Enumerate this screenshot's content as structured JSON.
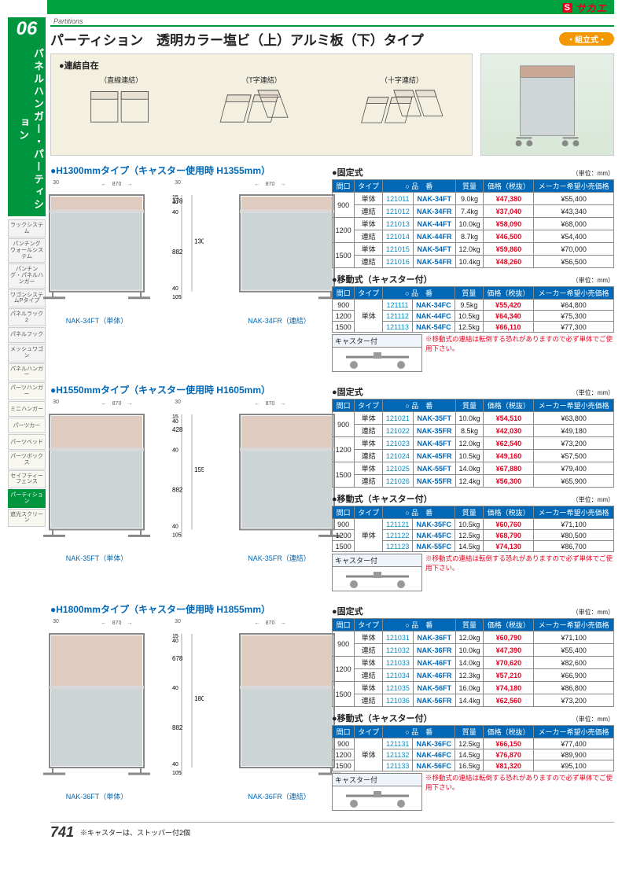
{
  "brand": {
    "s": "S",
    "name": "サカエ"
  },
  "section_number": "06",
  "section_vertical": "パネルハンガー・パーティション",
  "subhead": "Partitions",
  "page_title": "パーティション　透明カラー塩ビ（上）アルミ板（下）タイプ",
  "badge": "・組立式・",
  "sidebar_items": [
    {
      "label": "ラックシステム"
    },
    {
      "label": "パンチングウォールシステム"
    },
    {
      "label": "パンチング・パネルハンガー"
    },
    {
      "label": "ワゴンシステムPタイプ"
    },
    {
      "label": "パネルラック2"
    },
    {
      "label": "パネルフック"
    },
    {
      "label": "メッシュワゴン"
    },
    {
      "label": "パネルハンガー",
      "lt": true
    },
    {
      "label": "パーツハンガー",
      "lt": true
    },
    {
      "label": "ミニハンガー",
      "lt": true
    },
    {
      "label": "パーツカー",
      "lt": true
    },
    {
      "label": "パーツベッド",
      "lt": true
    },
    {
      "label": "パーツボックス",
      "lt": true
    },
    {
      "label": "セイフティーフェンス",
      "lt": true
    },
    {
      "label": "パーティション",
      "active": true
    },
    {
      "label": "遮光スクリーン",
      "lt": true
    }
  ],
  "connection": {
    "title": "●連結自在",
    "items": [
      {
        "label": "（直線連結）",
        "svg": "line"
      },
      {
        "label": "（T字連結）",
        "svg": "tee"
      },
      {
        "label": "（十字連結）",
        "svg": "cross"
      }
    ]
  },
  "table_headers": [
    "間口",
    "タイプ",
    "品　番",
    "質量",
    "価格（税抜）",
    "メーカー希望小売価格"
  ],
  "fixed_label": "●固定式",
  "mobile_label": "●移動式（キャスター付）",
  "unit_label": "（単位：mm）",
  "caster_label": "キャスター付",
  "caster_note": "※移動式の連結は転倒する恐れがありますので必ず単体でご使用下さい。",
  "groups": [
    {
      "title": "●H1300mmタイプ（キャスター使用時 H1355mm）",
      "cap_left": "NAK-34FT（単体）",
      "cap_right": "NAK-34FR（連結）",
      "svg": {
        "total_h": "1300",
        "bottom_h": "882",
        "top_h": "178",
        "frame_top": "15",
        "frame_mid": "40",
        "frame_bot": "40",
        "leg": "105",
        "width": "870",
        "side": "30"
      },
      "fixed": [
        {
          "w": "900",
          "t": "単体",
          "code": "121011",
          "model": "NAK-34FT",
          "mass": "9.0kg",
          "price": "47,380",
          "msrp": "¥55,400"
        },
        {
          "w": "",
          "t": "連結",
          "code": "121012",
          "model": "NAK-34FR",
          "mass": "7.4kg",
          "price": "37,040",
          "msrp": "¥43,340"
        },
        {
          "w": "1200",
          "t": "単体",
          "code": "121013",
          "model": "NAK-44FT",
          "mass": "10.0kg",
          "price": "58,090",
          "msrp": "¥68,000"
        },
        {
          "w": "",
          "t": "連結",
          "code": "121014",
          "model": "NAK-44FR",
          "mass": "8.7kg",
          "price": "46,500",
          "msrp": "¥54,400"
        },
        {
          "w": "1500",
          "t": "単体",
          "code": "121015",
          "model": "NAK-54FT",
          "mass": "12.0kg",
          "price": "59,860",
          "msrp": "¥70,000"
        },
        {
          "w": "",
          "t": "連結",
          "code": "121016",
          "model": "NAK-54FR",
          "mass": "10.4kg",
          "price": "48,260",
          "msrp": "¥56,500"
        }
      ],
      "mobile": [
        {
          "w": "900",
          "t": "",
          "code": "121111",
          "model": "NAK-34FC",
          "mass": "9.5kg",
          "price": "55,420",
          "msrp": "¥64,800"
        },
        {
          "w": "1200",
          "t": "単体",
          "code": "121112",
          "model": "NAK-44FC",
          "mass": "10.5kg",
          "price": "64,340",
          "msrp": "¥75,300"
        },
        {
          "w": "1500",
          "t": "",
          "code": "121113",
          "model": "NAK-54FC",
          "mass": "12.5kg",
          "price": "66,110",
          "msrp": "¥77,300"
        }
      ]
    },
    {
      "title": "●H1550mmタイプ（キャスター使用時 H1605mm）",
      "cap_left": "NAK-35FT（単体）",
      "cap_right": "NAK-35FR（連結）",
      "svg": {
        "total_h": "1550",
        "bottom_h": "882",
        "top_h": "428",
        "frame_top": "15",
        "frame_mid": "40",
        "frame_bot": "40",
        "leg": "105",
        "width": "870",
        "side": "30"
      },
      "fixed": [
        {
          "w": "900",
          "t": "単体",
          "code": "121021",
          "model": "NAK-35FT",
          "mass": "10.0kg",
          "price": "54,510",
          "msrp": "¥63,800"
        },
        {
          "w": "",
          "t": "連結",
          "code": "121022",
          "model": "NAK-35FR",
          "mass": "8.5kg",
          "price": "42,030",
          "msrp": "¥49,180"
        },
        {
          "w": "1200",
          "t": "単体",
          "code": "121023",
          "model": "NAK-45FT",
          "mass": "12.0kg",
          "price": "62,540",
          "msrp": "¥73,200"
        },
        {
          "w": "",
          "t": "連結",
          "code": "121024",
          "model": "NAK-45FR",
          "mass": "10.5kg",
          "price": "49,160",
          "msrp": "¥57,500"
        },
        {
          "w": "1500",
          "t": "単体",
          "code": "121025",
          "model": "NAK-55FT",
          "mass": "14.0kg",
          "price": "67,880",
          "msrp": "¥79,400"
        },
        {
          "w": "",
          "t": "連結",
          "code": "121026",
          "model": "NAK-55FR",
          "mass": "12.4kg",
          "price": "56,300",
          "msrp": "¥65,900"
        }
      ],
      "mobile": [
        {
          "w": "900",
          "t": "",
          "code": "121121",
          "model": "NAK-35FC",
          "mass": "10.5kg",
          "price": "60,760",
          "msrp": "¥71,100"
        },
        {
          "w": "1200",
          "t": "単体",
          "code": "121122",
          "model": "NAK-45FC",
          "mass": "12.5kg",
          "price": "68,790",
          "msrp": "¥80,500"
        },
        {
          "w": "1500",
          "t": "",
          "code": "121123",
          "model": "NAK-55FC",
          "mass": "14.5kg",
          "price": "74,130",
          "msrp": "¥86,700"
        }
      ]
    },
    {
      "title": "●H1800mmタイプ（キャスター使用時 H1855mm）",
      "cap_left": "NAK-36FT（単体）",
      "cap_right": "NAK-36FR（連結）",
      "svg": {
        "total_h": "1800",
        "bottom_h": "882",
        "top_h": "678",
        "frame_top": "15",
        "frame_mid": "40",
        "frame_bot": "40",
        "leg": "105",
        "width": "870",
        "side": "30"
      },
      "fixed": [
        {
          "w": "900",
          "t": "単体",
          "code": "121031",
          "model": "NAK-36FT",
          "mass": "12.0kg",
          "price": "60,790",
          "msrp": "¥71,100"
        },
        {
          "w": "",
          "t": "連結",
          "code": "121032",
          "model": "NAK-36FR",
          "mass": "10.0kg",
          "price": "47,390",
          "msrp": "¥55,400"
        },
        {
          "w": "1200",
          "t": "単体",
          "code": "121033",
          "model": "NAK-46FT",
          "mass": "14.0kg",
          "price": "70,620",
          "msrp": "¥82,600"
        },
        {
          "w": "",
          "t": "連結",
          "code": "121034",
          "model": "NAK-46FR",
          "mass": "12.3kg",
          "price": "57,210",
          "msrp": "¥66,900"
        },
        {
          "w": "1500",
          "t": "単体",
          "code": "121035",
          "model": "NAK-56FT",
          "mass": "16.0kg",
          "price": "74,180",
          "msrp": "¥86,800"
        },
        {
          "w": "",
          "t": "連結",
          "code": "121036",
          "model": "NAK-56FR",
          "mass": "14.4kg",
          "price": "62,560",
          "msrp": "¥73,200"
        }
      ],
      "mobile": [
        {
          "w": "900",
          "t": "",
          "code": "121131",
          "model": "NAK-36FC",
          "mass": "12.5kg",
          "price": "66,150",
          "msrp": "¥77,400"
        },
        {
          "w": "1200",
          "t": "単体",
          "code": "121132",
          "model": "NAK-46FC",
          "mass": "14.5kg",
          "price": "76,870",
          "msrp": "¥89,900"
        },
        {
          "w": "1500",
          "t": "",
          "code": "121133",
          "model": "NAK-56FC",
          "mass": "16.5kg",
          "price": "81,320",
          "msrp": "¥95,100"
        }
      ]
    }
  ],
  "page_number": "741",
  "footer_note": "※キャスターは、ストッパー付2個"
}
